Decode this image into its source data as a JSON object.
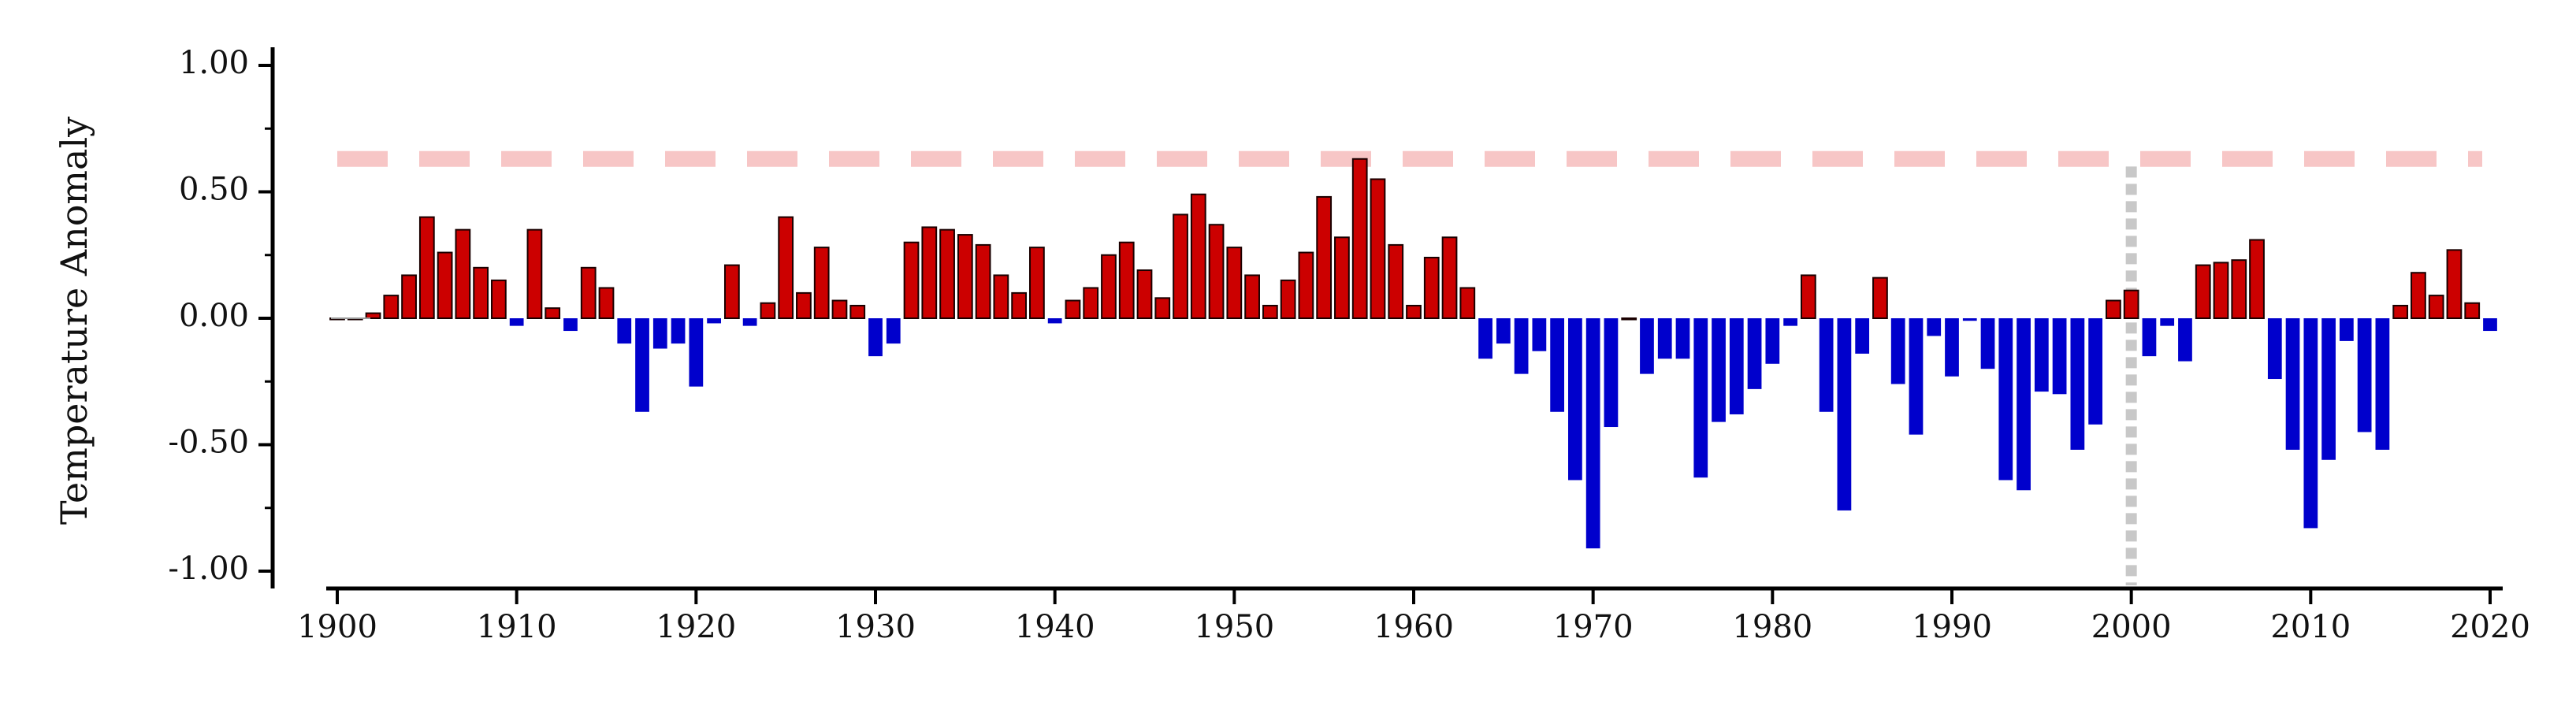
{
  "chart_data": {
    "type": "bar",
    "ylabel": "Temperature Anomaly",
    "xlabel": "",
    "title": "",
    "xlim": [
      1900,
      2020
    ],
    "ylim": [
      -1.05,
      1.05
    ],
    "x_ticks": [
      1900,
      1910,
      1920,
      1930,
      1940,
      1950,
      1960,
      1970,
      1980,
      1990,
      2000,
      2010,
      2020
    ],
    "x_tick_labels": [
      "1900",
      "1910",
      "1920",
      "1930",
      "1940",
      "1950",
      "1960",
      "1970",
      "1980",
      "1990",
      "2000",
      "2010",
      "2020"
    ],
    "y_ticks": [
      1.0,
      0.5,
      0.0,
      -0.5,
      -1.0
    ],
    "y_tick_labels": [
      "1.00",
      "0.50",
      "0.00",
      "-0.50",
      "-1.00"
    ],
    "y_minor_ticks": [
      0.75,
      0.25,
      -0.25,
      -0.75
    ],
    "positive_color": "#cc0000",
    "negative_color": "#0000cc",
    "reference_line": {
      "y": 0.63,
      "color": "#f7c6c6",
      "style": "dashed"
    },
    "vertical_marker": {
      "x": 2000,
      "y_top": 0.6,
      "color": "#c8c8c8",
      "style": "dotted"
    },
    "grid": false,
    "legend": "none",
    "years": [
      1900,
      1901,
      1902,
      1903,
      1904,
      1905,
      1906,
      1907,
      1908,
      1909,
      1910,
      1911,
      1912,
      1913,
      1914,
      1915,
      1916,
      1917,
      1918,
      1919,
      1920,
      1921,
      1922,
      1923,
      1924,
      1925,
      1926,
      1927,
      1928,
      1929,
      1930,
      1931,
      1932,
      1933,
      1934,
      1935,
      1936,
      1937,
      1938,
      1939,
      1940,
      1941,
      1942,
      1943,
      1944,
      1945,
      1946,
      1947,
      1948,
      1949,
      1950,
      1951,
      1952,
      1953,
      1954,
      1955,
      1956,
      1957,
      1958,
      1959,
      1960,
      1961,
      1962,
      1963,
      1964,
      1965,
      1966,
      1967,
      1968,
      1969,
      1970,
      1971,
      1972,
      1973,
      1974,
      1975,
      1976,
      1977,
      1978,
      1979,
      1980,
      1981,
      1982,
      1983,
      1984,
      1985,
      1986,
      1987,
      1988,
      1989,
      1990,
      1991,
      1992,
      1993,
      1994,
      1995,
      1996,
      1997,
      1998,
      1999,
      2000,
      2001,
      2002,
      2003,
      2004,
      2005,
      2006,
      2007,
      2008,
      2009,
      2010,
      2011,
      2012,
      2013,
      2014,
      2015,
      2016,
      2017,
      2018,
      2019,
      2020
    ],
    "values": [
      0.0,
      0.0,
      0.02,
      0.09,
      0.17,
      0.4,
      0.26,
      0.35,
      0.2,
      0.15,
      -0.03,
      0.35,
      0.04,
      -0.05,
      0.2,
      0.12,
      -0.1,
      -0.37,
      -0.12,
      -0.1,
      -0.27,
      -0.02,
      0.21,
      -0.03,
      0.06,
      0.4,
      0.1,
      0.28,
      0.07,
      0.05,
      -0.15,
      -0.1,
      0.3,
      0.36,
      0.35,
      0.33,
      0.29,
      0.17,
      0.1,
      0.28,
      -0.02,
      0.07,
      0.12,
      0.25,
      0.3,
      0.19,
      0.08,
      0.41,
      0.49,
      0.37,
      0.28,
      0.17,
      0.05,
      0.15,
      0.26,
      0.48,
      0.32,
      0.63,
      0.55,
      0.29,
      0.05,
      0.24,
      0.32,
      0.12,
      -0.16,
      -0.1,
      -0.22,
      -0.13,
      -0.37,
      -0.64,
      -0.91,
      -0.43,
      0.0,
      -0.22,
      -0.16,
      -0.16,
      -0.63,
      -0.41,
      -0.38,
      -0.28,
      -0.18,
      -0.03,
      0.17,
      -0.37,
      -0.76,
      -0.14,
      0.16,
      -0.26,
      -0.46,
      -0.07,
      -0.23,
      -0.01,
      -0.2,
      -0.64,
      -0.68,
      -0.29,
      -0.3,
      -0.52,
      -0.42,
      0.07,
      0.11,
      -0.15,
      -0.03,
      -0.17,
      0.21,
      0.22,
      0.23,
      0.31,
      -0.24,
      -0.52,
      -0.83,
      -0.56,
      -0.09,
      -0.45,
      -0.52,
      0.05,
      0.18,
      0.09,
      0.27,
      0.06,
      -0.05
    ]
  }
}
